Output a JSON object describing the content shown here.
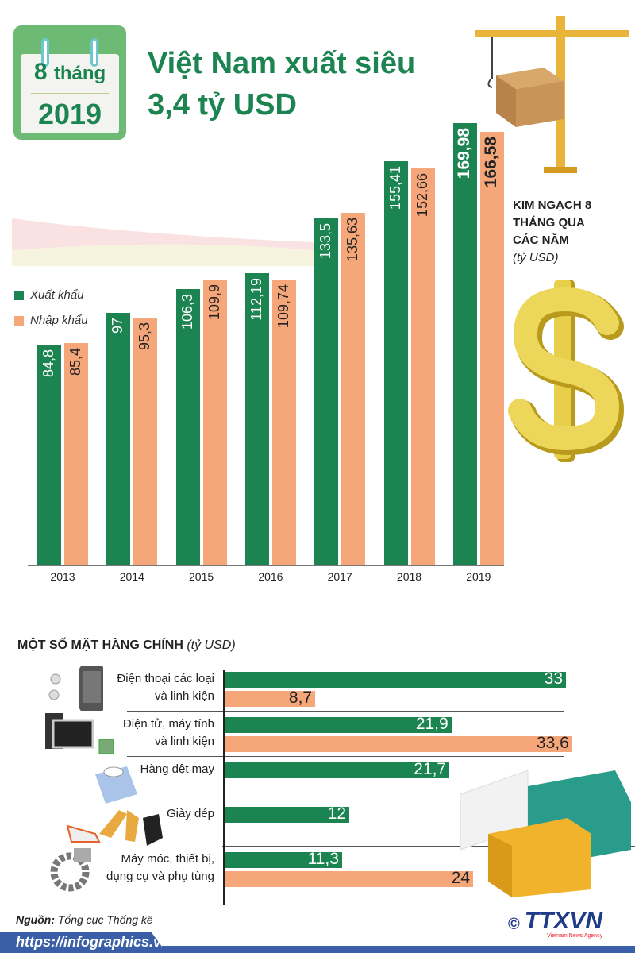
{
  "calendar": {
    "months": "8",
    "months_word": "tháng",
    "year": "2019"
  },
  "title": {
    "line1": "Việt Nam xuất siêu",
    "line2": "3,4 tỷ USD"
  },
  "colors": {
    "export": "#1c8450",
    "import": "#f5a77a",
    "title": "#1c8450"
  },
  "chart_data": [
    {
      "type": "bar",
      "title": "KIM NGẠCH 8 THÁNG QUA CÁC NĂM",
      "unit": "(tỷ USD)",
      "categories": [
        "2013",
        "2014",
        "2015",
        "2016",
        "2017",
        "2018",
        "2019"
      ],
      "series": [
        {
          "name": "Xuất khẩu",
          "values": [
            84.8,
            97,
            106.3,
            112.19,
            133.5,
            155.41,
            169.98
          ],
          "labels": [
            "84,8",
            "97",
            "106,3",
            "112,19",
            "133,5",
            "155,41",
            "169,98"
          ]
        },
        {
          "name": "Nhập khẩu",
          "values": [
            85.4,
            95.3,
            109.9,
            109.74,
            135.63,
            152.66,
            166.58
          ],
          "labels": [
            "85,4",
            "95,3",
            "109,9",
            "109,74",
            "135,63",
            "152,66",
            "166,58"
          ]
        }
      ],
      "ylim": [
        0,
        170
      ],
      "legend": "left"
    },
    {
      "type": "bar",
      "orientation": "horizontal",
      "title": "MỘT SỐ MẶT HÀNG CHÍNH",
      "unit": "(tỷ USD)",
      "categories": [
        {
          "lines": [
            "Điện thoại các loại",
            "và linh kiện"
          ],
          "export": 33,
          "import": 8.7,
          "export_label": "33",
          "import_label": "8,7"
        },
        {
          "lines": [
            "Điện tử, máy tính",
            "và linh kiện"
          ],
          "export": 21.9,
          "import": 33.6,
          "export_label": "21,9",
          "import_label": "33,6"
        },
        {
          "lines": [
            "Hàng dệt may"
          ],
          "export": 21.7,
          "export_label": "21,7"
        },
        {
          "lines": [
            "Giày dép"
          ],
          "export": 12,
          "export_label": "12"
        },
        {
          "lines": [
            "Máy móc, thiết bị,",
            "dụng cụ và phụ tùng"
          ],
          "export": 11.3,
          "import": 24,
          "export_label": "11,3",
          "import_label": "24"
        }
      ]
    }
  ],
  "source": {
    "label": "Nguồn:",
    "value": "Tổng cục Thống kê"
  },
  "footer": {
    "url": "https://infographics.vn",
    "logo": "TTXVN",
    "logo_sub": "Vietnam News Agency"
  }
}
